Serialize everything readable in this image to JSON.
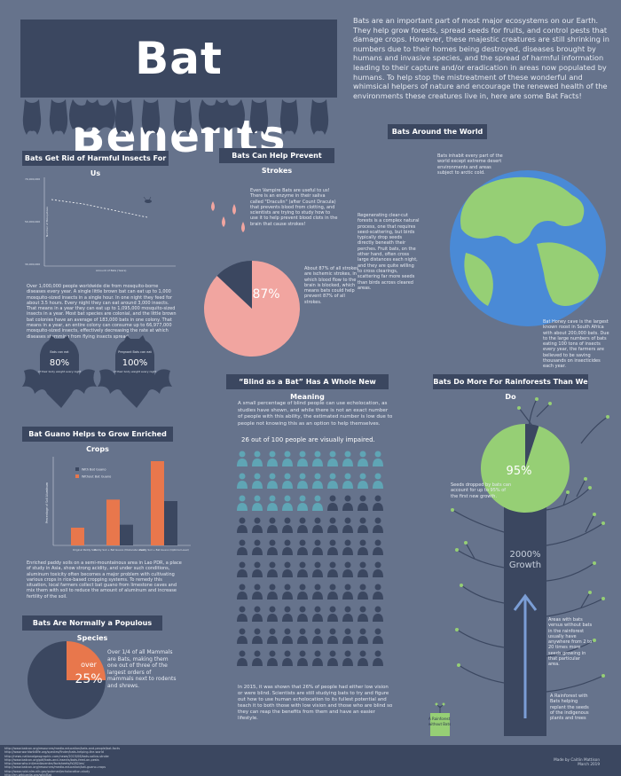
{
  "title": "Bat Benefits",
  "intro": "Bats are an important part of most major ecosystems on our Earth. They help grow forests, spread seeds for fruits, and control pests that damage crops. However, these majestic creatures are still shrinking in numbers due to their homes being destroyed, diseases brought by humans and invasive species, and the spread of harmful information leading to their capture and/or eradication in areas now populated by humans. To help stop the mistreatment of these wonderful and whimsical helpers of nature and encourage the renewed health of the environments these creatures live in, here are some Bat Facts!",
  "sections": {
    "insects": {
      "title": "Bats Get Rid of Harmful Insects For Us",
      "text": "Over 1,000,000 people worldwide die from mosquito-borne diseases every year. A single little brown bat can eat up to 1,000 mosquito-sized insects in a single hour. In one night they feed for about 3.5 hours. Every night they can eat around 3,000 insects. That means in a year they can eat up to 1,095,000 mosquito-sized insects in a year. Most bat species are colonial, and the little brown bat colonies have an average of 183,000 bats in one colony. That means in a year, an entire colony can consume up to 66,977,000 mosquito-sized insects, effectively decreasing the rate at which diseases stemming from flying insects spread."
    },
    "strokes": {
      "title": "Bats Can Help Prevent Strokes",
      "text": "Even Vampire Bats are useful to us! There is an enzyme in their saliva called \"Draculin\" (after Count Dracula) that prevents blood from clotting, and scientists are trying to study how to use it to help prevent blood clots in the brain that cause strokes!",
      "pie_label": "87%",
      "pie_text": "About 87% of all strokes are ischemic strokes, in which blood flow to the brain is blocked, which means bats could help prevent 87% of all strokes."
    },
    "world": {
      "title": "Bats Around the World",
      "note1": "Bats inhabit every part of the world except extreme desert environments and areas subject to arctic cold.",
      "note2": "Regenerating clear-cut forests is a complex natural process, one that requires seed-scattering, but birds typically drop seeds directly beneath their perches. Fruit bats, on the other hand, often cross large distances each night, and they are quite willing to cross clearings, scattering far more seeds than birds across cleared areas.",
      "note3": "Bat Honey cave is the largest known roost in South Africa with about 200,000 bats. Due to the large numbers of bats eating 100 tons of insects every year, the farmers are believed to be saving thousands on insecticides each year."
    },
    "stats": {
      "bat1_top": "Bats can eat",
      "bat1_value": "80%",
      "bat1_bottom": "of their body weight every night",
      "bat2_top": "Pregnant Bats can eat",
      "bat2_value": "100%",
      "bat2_bottom": "of their body weight every night"
    },
    "blind": {
      "title": "“Blind as a Bat” Has A Whole New Meaning",
      "text": "A small percentage of blind people can use echolocation, as studies have shown, and while there is not an exact number of people with this ability, the estimated number is low due to people not knowing this as an option to help themselves.",
      "headline": "26 out of 100 people are visually impaired.",
      "total": 100,
      "highlighted": 26,
      "footer": "In 2015, it was shown that 26% of people had either low vision or were blind. Scientists are still studying bats to try and figure out how to use human echolocation to its fullest potential and teach it to both those with low vision and those who are blind so they can reap the benefits from them and have an easier lifestyle."
    },
    "rainforest": {
      "title": "Bats Do More For Rainforests Than We Do",
      "pie_label": "95%",
      "seed_text": "Seeds dropped by bats can account for up to 95% of the first new growth.",
      "growth_value": "2000%",
      "growth_label": "Growth",
      "area_text": "Areas with bats versus without bats in the rainforest usually have anywhere from 2 to 20 times more seeds growing in that particular area.",
      "without_label": "A Rainforest without Bats",
      "with_label": "A Rainforest with Bats helping replant the seeds of the indigenous plants and trees"
    },
    "guano": {
      "title": "Bat Guano Helps to Grow Enriched Crops",
      "text": "Enriched paddy soils on a semi-mountainous area in Lao PDR, a place of study in Asia, show strong acidity, and under such conditions, aluminum toxicity often becomes a major problem with cultivating various crops in rice-based cropping systems. To remedy this situation, local farmers collect bat guano from limestone caves and mix them with soil to reduce the amount of aluminum and increase fertility of the soil."
    },
    "populous": {
      "title": "Bats Are Normally a Populous Species",
      "pie_label_1": "over",
      "pie_label_2": "25%",
      "text": "Over 1/4 of all Mammals are Bats, making them one out of three of the largest orders of mammals next to rodents and shrews."
    }
  },
  "chart_data": [
    {
      "type": "line",
      "title": "",
      "xlabel": "Amount of Bats (Years)",
      "ylabel": "Number of Mosquitoes",
      "series": [
        {
          "values": [
            60000000,
            58000000,
            55000000,
            52000000
          ]
        }
      ]
    },
    {
      "type": "bar",
      "title": "",
      "ylabel": "Percentage of Soil Aluminum",
      "categories": [
        "Original Paddy Soil",
        "Paddy Soil + Bat Guano (Moderate Level)",
        "Paddy Soil + Bat Guano (Optimal Level)"
      ],
      "series": [
        {
          "name": "With Bat Guano",
          "values": [
            0,
            14,
            30
          ]
        },
        {
          "name": "Without Bat Guano",
          "values": [
            12,
            31,
            57
          ]
        }
      ],
      "ylim": [
        0,
        60
      ]
    },
    {
      "type": "pie",
      "title": "",
      "values": [
        87,
        13
      ],
      "labels": [
        "87%",
        ""
      ]
    },
    {
      "type": "pie",
      "title": "",
      "values": [
        95,
        5
      ],
      "labels": [
        "95%",
        ""
      ]
    },
    {
      "type": "pie",
      "title": "",
      "values": [
        25,
        75
      ],
      "labels": [
        "over 25%",
        ""
      ]
    }
  ],
  "footer": {
    "links": [
      "http://www.batcon.org/resources/media-education/bats-and-people/bat-facts",
      "http://www.worldwildlife.org/species/finder/bats-helping-the-world",
      "http://news.nationalgeographic.com/news/2015/08/bats-saliva-stroke",
      "http://www.batcon.org/pdf/bats-and-insects/bats-feed-on-pests",
      "http://www.who.int/mediacentre/factsheets/fs282/en/",
      "http://www.batcon.org/resources/media-education/bat-guano-crops",
      "http://www.ncbi.nlm.nih.gov/pubmed/echolocation-study",
      "http://en.wikipedia.org/wiki/Bat"
    ],
    "credit_1": "Made by Caitlin Mattison",
    "credit_2": "March 2019"
  },
  "colors": {
    "background": "#66738c",
    "dark": "#3b4760",
    "pink": "#f1a5a0",
    "green": "#96cf75",
    "blue": "#4a8ad6",
    "orange": "#e8774c",
    "teal": "#5fa5b5"
  }
}
